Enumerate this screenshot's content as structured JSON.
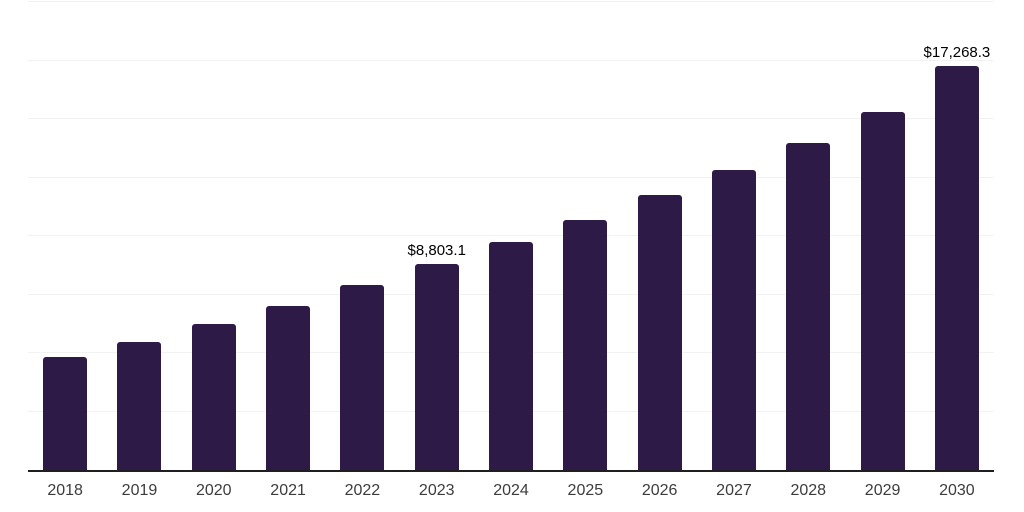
{
  "chart_data": {
    "type": "bar",
    "title": "",
    "xlabel": "",
    "ylabel": "",
    "categories": [
      "2018",
      "2019",
      "2020",
      "2021",
      "2022",
      "2023",
      "2024",
      "2025",
      "2026",
      "2027",
      "2028",
      "2029",
      "2030"
    ],
    "values": [
      4820,
      5455,
      6220,
      7005,
      7915,
      8803.1,
      9740,
      10675,
      11735,
      12800,
      13985,
      15305,
      17268.3
    ],
    "value_labels": {
      "2023": "$8,803.1",
      "2030": "$17,268.3"
    },
    "ylim": [
      0,
      20000
    ],
    "gridline_step": 2500,
    "grid": "horizontal",
    "legend_position": "none",
    "colors": {
      "bar": "#2E1A47",
      "gridline": "#F2F2F2",
      "axis_line": "#1F1F1F",
      "tick_label": "#3C3C3C",
      "value_label": "#000000",
      "background": "#FFFFFF"
    }
  }
}
